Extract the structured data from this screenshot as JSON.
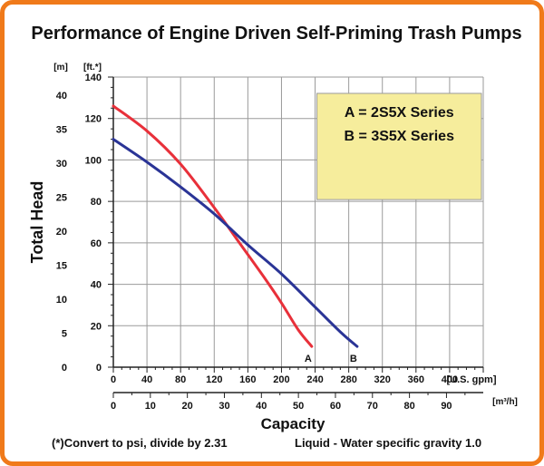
{
  "theme": {
    "frame": "#f07a1a",
    "legend_bg": "#f6ed9c",
    "curve_a": "#e8303a",
    "curve_b": "#2a3496",
    "grid": "#9a9a9a"
  },
  "chart_data": {
    "type": "line",
    "title": "Performance of Engine Driven Self-Priming Trash Pumps",
    "xlabel": "Capacity",
    "ylabel": "Total Head",
    "x_unit_primary": "[U.S. gpm]",
    "x_unit_secondary": "[m³/h]",
    "y_unit_left": "[m]",
    "y_unit_right": "[ft.*]",
    "xlim": [
      0,
      440
    ],
    "ylim": [
      0,
      140
    ],
    "x_ticks": [
      0,
      40,
      80,
      120,
      160,
      200,
      240,
      280,
      320,
      360,
      400
    ],
    "x_ticks_secondary": [
      0,
      10,
      20,
      30,
      40,
      50,
      60,
      70,
      80,
      90
    ],
    "y_ticks_ft": [
      0,
      20,
      40,
      60,
      80,
      100,
      120,
      140
    ],
    "y_ticks_m": [
      0,
      5,
      10,
      15,
      20,
      25,
      30,
      35,
      40
    ],
    "legend": [
      "A = 2S5X Series",
      "B = 3S5X Series"
    ],
    "grid": true,
    "legend_position": "top-right",
    "series": [
      {
        "name": "A",
        "x": [
          0,
          40,
          80,
          120,
          150,
          180,
          200,
          220,
          236
        ],
        "y": [
          126,
          114,
          98,
          77,
          60,
          43,
          31,
          18,
          10
        ]
      },
      {
        "name": "B",
        "x": [
          0,
          40,
          80,
          120,
          160,
          200,
          240,
          270,
          290
        ],
        "y": [
          110,
          99,
          87,
          74,
          59,
          45,
          29,
          17,
          10
        ]
      }
    ],
    "notes": [
      "(*)Convert to psi, divide by 2.31",
      "Liquid - Water specific gravity 1.0"
    ]
  }
}
